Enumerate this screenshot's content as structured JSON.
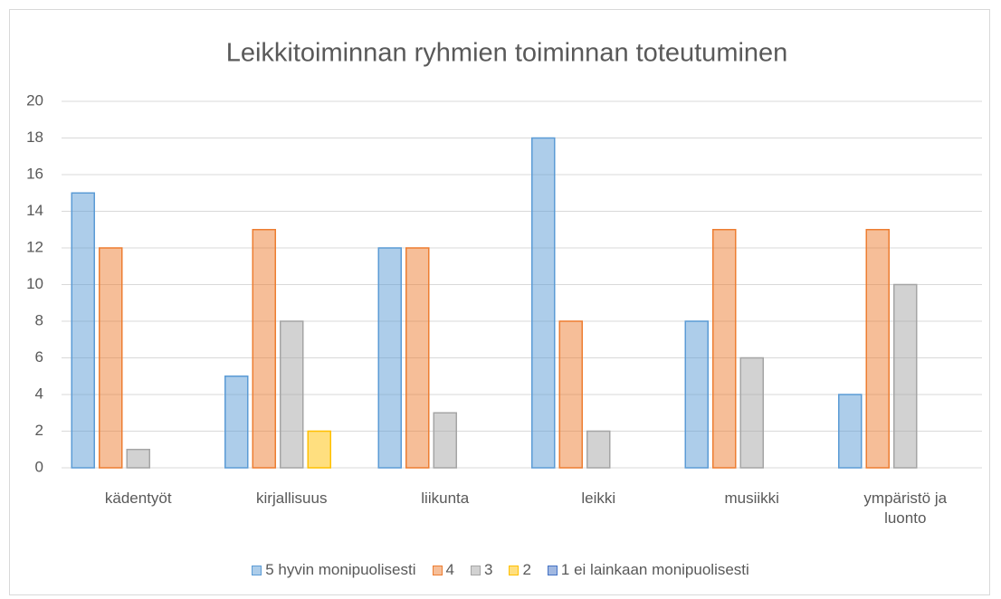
{
  "chart_data": {
    "type": "bar",
    "title": "Leikkitoiminnan ryhmien toiminnan toteutuminen",
    "categories": [
      "kädentyöt",
      "kirjallisuus",
      "liikunta",
      "leikki",
      "musiikki",
      "ympäristö ja luonto"
    ],
    "series": [
      {
        "name": "5 hyvin monipuolisesti",
        "color": "#5b9bd5",
        "values": [
          15,
          5,
          12,
          18,
          8,
          4
        ]
      },
      {
        "name": "4",
        "color": "#ed7d31",
        "values": [
          12,
          13,
          12,
          8,
          13,
          13
        ]
      },
      {
        "name": "3",
        "color": "#a5a5a5",
        "values": [
          1,
          8,
          3,
          2,
          6,
          10
        ]
      },
      {
        "name": "2",
        "color": "#ffc000",
        "values": [
          0,
          2,
          0,
          0,
          0,
          0
        ]
      },
      {
        "name": "1 ei lainkaan monipuolisesti",
        "color": "#4472c4",
        "values": [
          0,
          0,
          0,
          0,
          0,
          0
        ]
      }
    ],
    "ylim": [
      0,
      20
    ],
    "yticks": [
      0,
      2,
      4,
      6,
      8,
      10,
      12,
      14,
      16,
      18,
      20
    ],
    "grid": true,
    "legend": "bottom"
  }
}
